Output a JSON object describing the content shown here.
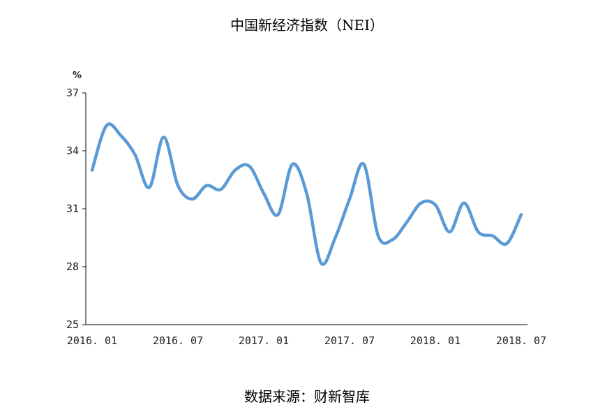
{
  "chart_data": {
    "type": "line",
    "title": "中国新经济指数（NEI）",
    "ylabel": "%",
    "source": "数据来源：财新智库",
    "ylim": [
      25,
      37
    ],
    "yticks": [
      "37",
      "34",
      "31",
      "28",
      "25"
    ],
    "xtick_labels": [
      "2016. 01",
      "2016. 07",
      "2017. 01",
      "2017. 07",
      "2018. 01",
      "2018. 07"
    ],
    "x": [
      "2016-01",
      "2016-02",
      "2016-03",
      "2016-04",
      "2016-05",
      "2016-06",
      "2016-07",
      "2016-08",
      "2016-09",
      "2016-10",
      "2016-11",
      "2016-12",
      "2017-01",
      "2017-02",
      "2017-03",
      "2017-04",
      "2017-05",
      "2017-06",
      "2017-07",
      "2017-08",
      "2017-09",
      "2017-10",
      "2017-11",
      "2017-12",
      "2018-01",
      "2018-02",
      "2018-03",
      "2018-04",
      "2018-05",
      "2018-06",
      "2018-07"
    ],
    "series": [
      {
        "values": [
          33.0,
          35.3,
          34.8,
          33.8,
          32.1,
          34.7,
          32.2,
          31.5,
          32.2,
          32.0,
          33.0,
          33.2,
          31.8,
          30.7,
          33.3,
          31.8,
          28.2,
          29.5,
          31.5,
          33.3,
          29.6,
          29.4,
          30.3,
          31.3,
          31.2,
          29.8,
          31.3,
          29.8,
          29.6,
          29.2,
          30.7
        ],
        "color": "#5b9bd5"
      }
    ],
    "grid": false,
    "legend": "none"
  }
}
